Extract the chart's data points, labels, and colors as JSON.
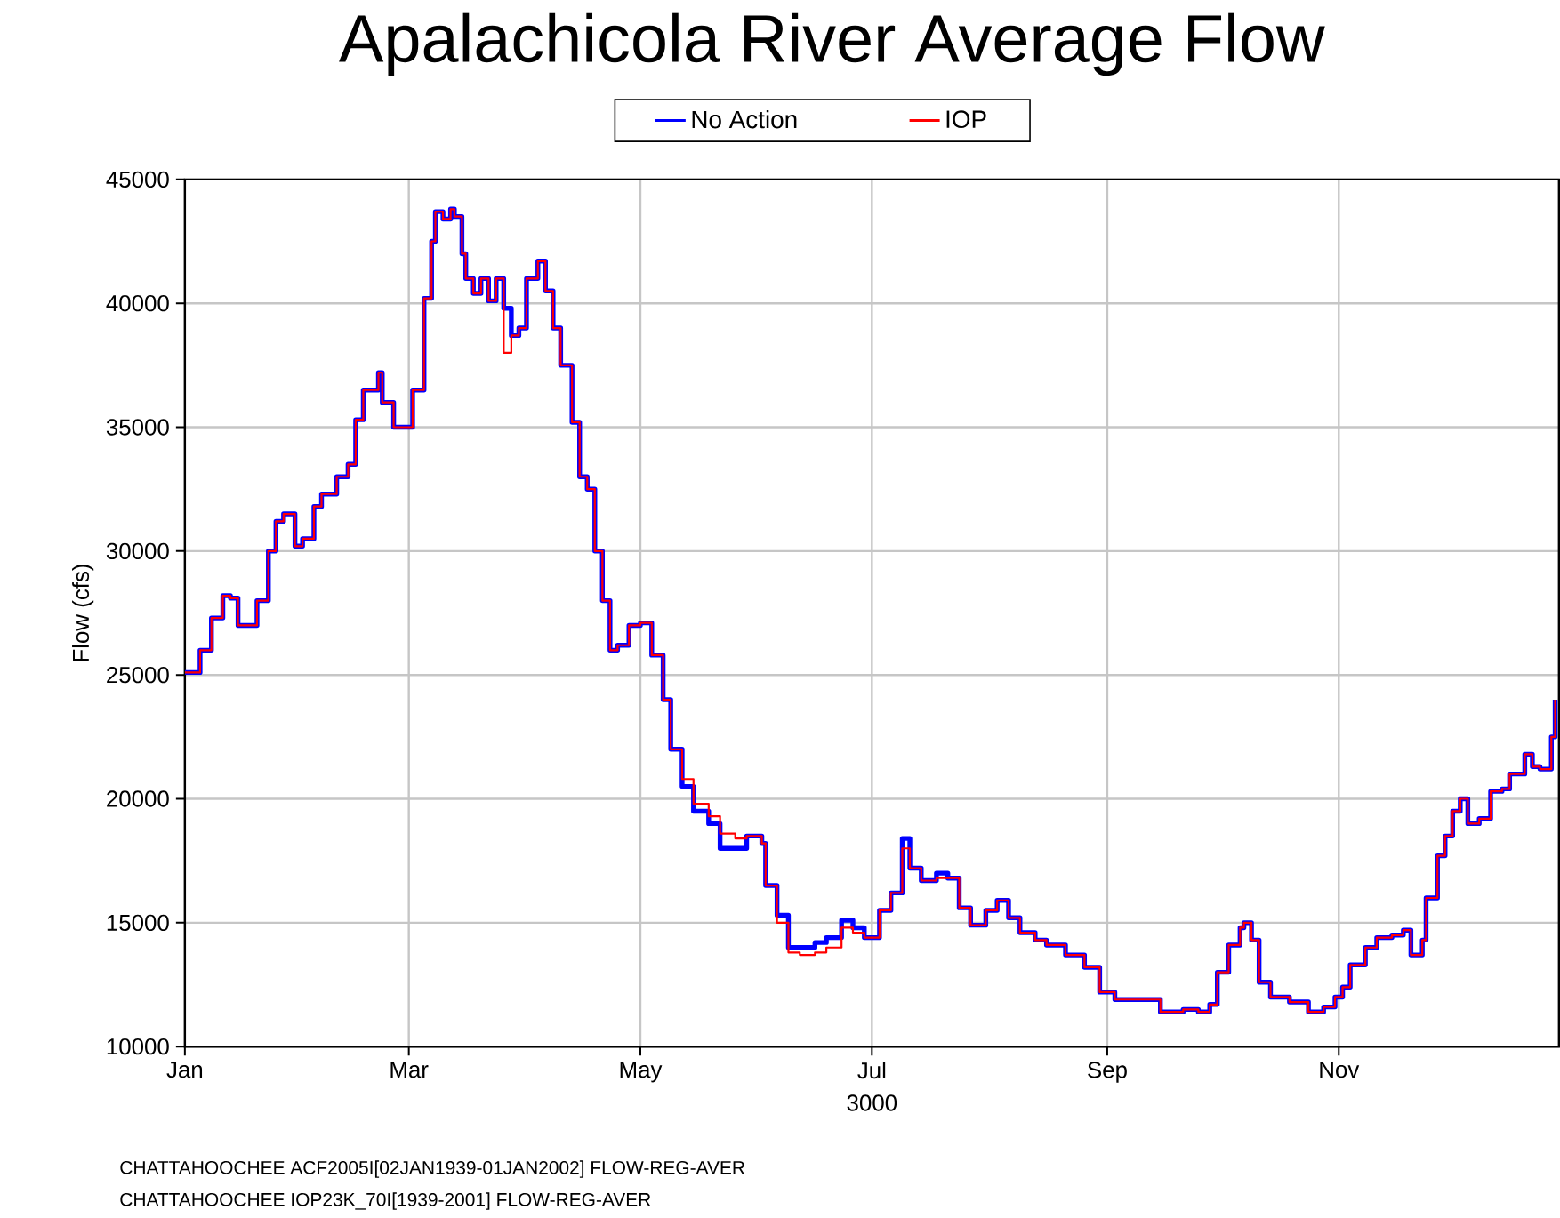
{
  "chart_data": {
    "type": "step",
    "title": "Apalachicola River Average Flow",
    "xlabel": "3000",
    "ylabel": "Flow (cfs)",
    "x": [
      "3000-01-01",
      "3000-01-05",
      "3000-01-08",
      "3000-01-11",
      "3000-01-13",
      "3000-01-15",
      "3000-01-17",
      "3000-01-20",
      "3000-01-23",
      "3000-01-25",
      "3000-01-27",
      "3000-01-30",
      "3000-02-01",
      "3000-02-04",
      "3000-02-06",
      "3000-02-10",
      "3000-02-13",
      "3000-02-15",
      "3000-02-17",
      "3000-02-21",
      "3000-02-22",
      "3000-02-25",
      "3000-02-28",
      "3000-03-02",
      "3000-03-05",
      "3000-03-07",
      "3000-03-08",
      "3000-03-10",
      "3000-03-12",
      "3000-03-13",
      "3000-03-15",
      "3000-03-16",
      "3000-03-18",
      "3000-03-20",
      "3000-03-22",
      "3000-03-24",
      "3000-03-26",
      "3000-03-28",
      "3000-03-30",
      "3000-04-01",
      "3000-04-04",
      "3000-04-06",
      "3000-04-08",
      "3000-04-10",
      "3000-04-13",
      "3000-04-15",
      "3000-04-17",
      "3000-04-19",
      "3000-04-21",
      "3000-04-23",
      "3000-04-25",
      "3000-04-28",
      "3000-05-01",
      "3000-05-04",
      "3000-05-07",
      "3000-05-09",
      "3000-05-12",
      "3000-05-15",
      "3000-05-19",
      "3000-05-22",
      "3000-05-26",
      "3000-05-29",
      "3000-06-02",
      "3000-06-03",
      "3000-06-06",
      "3000-06-09",
      "3000-06-12",
      "3000-06-16",
      "3000-06-19",
      "3000-06-23",
      "3000-06-26",
      "3000-06-29",
      "3000-07-03",
      "3000-07-06",
      "3000-07-09",
      "3000-07-11",
      "3000-07-14",
      "3000-07-18",
      "3000-07-21",
      "3000-07-24",
      "3000-07-27",
      "3000-07-31",
      "3000-08-03",
      "3000-08-06",
      "3000-08-09",
      "3000-08-13",
      "3000-08-16",
      "3000-08-21",
      "3000-08-26",
      "3000-08-30",
      "3000-09-03",
      "3000-09-09",
      "3000-09-15",
      "3000-09-21",
      "3000-09-25",
      "3000-09-28",
      "3000-09-30",
      "3000-10-03",
      "3000-10-06",
      "3000-10-07",
      "3000-10-09",
      "3000-10-11",
      "3000-10-14",
      "3000-10-19",
      "3000-10-22",
      "3000-10-24",
      "3000-10-28",
      "3000-10-31",
      "3000-11-02",
      "3000-11-04",
      "3000-11-08",
      "3000-11-11",
      "3000-11-15",
      "3000-11-18",
      "3000-11-20",
      "3000-11-23",
      "3000-11-24",
      "3000-11-27",
      "3000-11-29",
      "3000-12-01",
      "3000-12-03",
      "3000-12-05",
      "3000-12-08",
      "3000-12-11",
      "3000-12-14",
      "3000-12-16",
      "3000-12-20",
      "3000-12-22",
      "3000-12-24",
      "3000-12-27",
      "3000-12-28"
    ],
    "series": [
      {
        "name": "No Action",
        "color": "#0000ff",
        "values": [
          25100,
          26000,
          27300,
          28200,
          28100,
          27000,
          27000,
          28000,
          30000,
          31200,
          31500,
          30200,
          30500,
          31800,
          32300,
          33000,
          33500,
          35300,
          36500,
          37200,
          36000,
          35000,
          35000,
          36500,
          40200,
          42500,
          43700,
          43400,
          43800,
          43500,
          42000,
          41000,
          40400,
          41000,
          40100,
          41000,
          39800,
          38700,
          39000,
          41000,
          41700,
          40500,
          39000,
          37500,
          35200,
          33000,
          32500,
          30000,
          28000,
          26000,
          26200,
          27000,
          27100,
          25800,
          24000,
          22000,
          20500,
          19500,
          19000,
          18000,
          18000,
          18500,
          18200,
          16500,
          15300,
          14000,
          14000,
          14200,
          14400,
          15100,
          14800,
          14400,
          15500,
          16200,
          18400,
          17200,
          16700,
          17000,
          16800,
          15600,
          14900,
          15500,
          15900,
          15200,
          14600,
          14300,
          14100,
          13700,
          13200,
          12200,
          11900,
          11900,
          11400,
          11500,
          11400,
          11700,
          13000,
          14100,
          14800,
          15000,
          14300,
          12600,
          12000,
          11800,
          11800,
          11400,
          11600,
          12000,
          12400,
          13300,
          14000,
          14400,
          14500,
          14700,
          13700,
          14300,
          16000,
          17700,
          18500,
          19500,
          20000,
          19000,
          19200,
          20300,
          20400,
          21000,
          21800,
          21300,
          21200,
          22500,
          24000
        ]
      },
      {
        "name": "IOP",
        "color": "#ff0000",
        "values": [
          25100,
          26000,
          27300,
          28200,
          28100,
          27000,
          27000,
          28000,
          30000,
          31200,
          31500,
          30200,
          30500,
          31800,
          32300,
          33000,
          33500,
          35300,
          36500,
          37200,
          36000,
          35000,
          35000,
          36500,
          40200,
          42500,
          43700,
          43400,
          43800,
          43500,
          42000,
          41000,
          40400,
          41000,
          40100,
          41000,
          38000,
          38700,
          39000,
          41000,
          41700,
          40500,
          39000,
          37500,
          35200,
          33000,
          32500,
          30000,
          28000,
          26000,
          26200,
          27000,
          27100,
          25800,
          24000,
          22000,
          20800,
          19800,
          19300,
          18600,
          18400,
          18500,
          18200,
          16500,
          15000,
          13800,
          13700,
          13800,
          14000,
          14800,
          14600,
          14400,
          15500,
          16200,
          18000,
          17200,
          16700,
          16800,
          16800,
          15600,
          14900,
          15500,
          15900,
          15200,
          14600,
          14300,
          14100,
          13700,
          13200,
          12200,
          11900,
          11900,
          11400,
          11500,
          11400,
          11700,
          13000,
          14100,
          14800,
          15000,
          14300,
          12600,
          12000,
          11800,
          11800,
          11400,
          11600,
          12000,
          12400,
          13300,
          14000,
          14400,
          14500,
          14700,
          13700,
          14300,
          16000,
          17700,
          18500,
          19500,
          20000,
          19000,
          19200,
          20300,
          20400,
          21000,
          21800,
          21300,
          21200,
          22500,
          24000
        ]
      }
    ],
    "xlim": [
      "3000-01-01",
      "3000-12-29"
    ],
    "xticks": [
      {
        "value": "3000-01-01",
        "label": "Jan"
      },
      {
        "value": "3000-03-01",
        "label": "Mar"
      },
      {
        "value": "3000-05-01",
        "label": "May"
      },
      {
        "value": "3000-07-01",
        "label": "Jul"
      },
      {
        "value": "3000-09-01",
        "label": "Sep"
      },
      {
        "value": "3000-11-01",
        "label": "Nov"
      }
    ],
    "ylim": [
      10000,
      45000
    ],
    "yticks": [
      10000,
      15000,
      20000,
      25000,
      30000,
      35000,
      40000,
      45000
    ],
    "grid": true,
    "legend": "top",
    "marker": "none",
    "line_style": "solid",
    "annotations": [
      "CHATTAHOOCHEE ACF2005I[02JAN1939-01JAN2002] FLOW-REG-AVER",
      "CHATTAHOOCHEE IOP23K_70I[1939-2001] FLOW-REG-AVER"
    ]
  }
}
